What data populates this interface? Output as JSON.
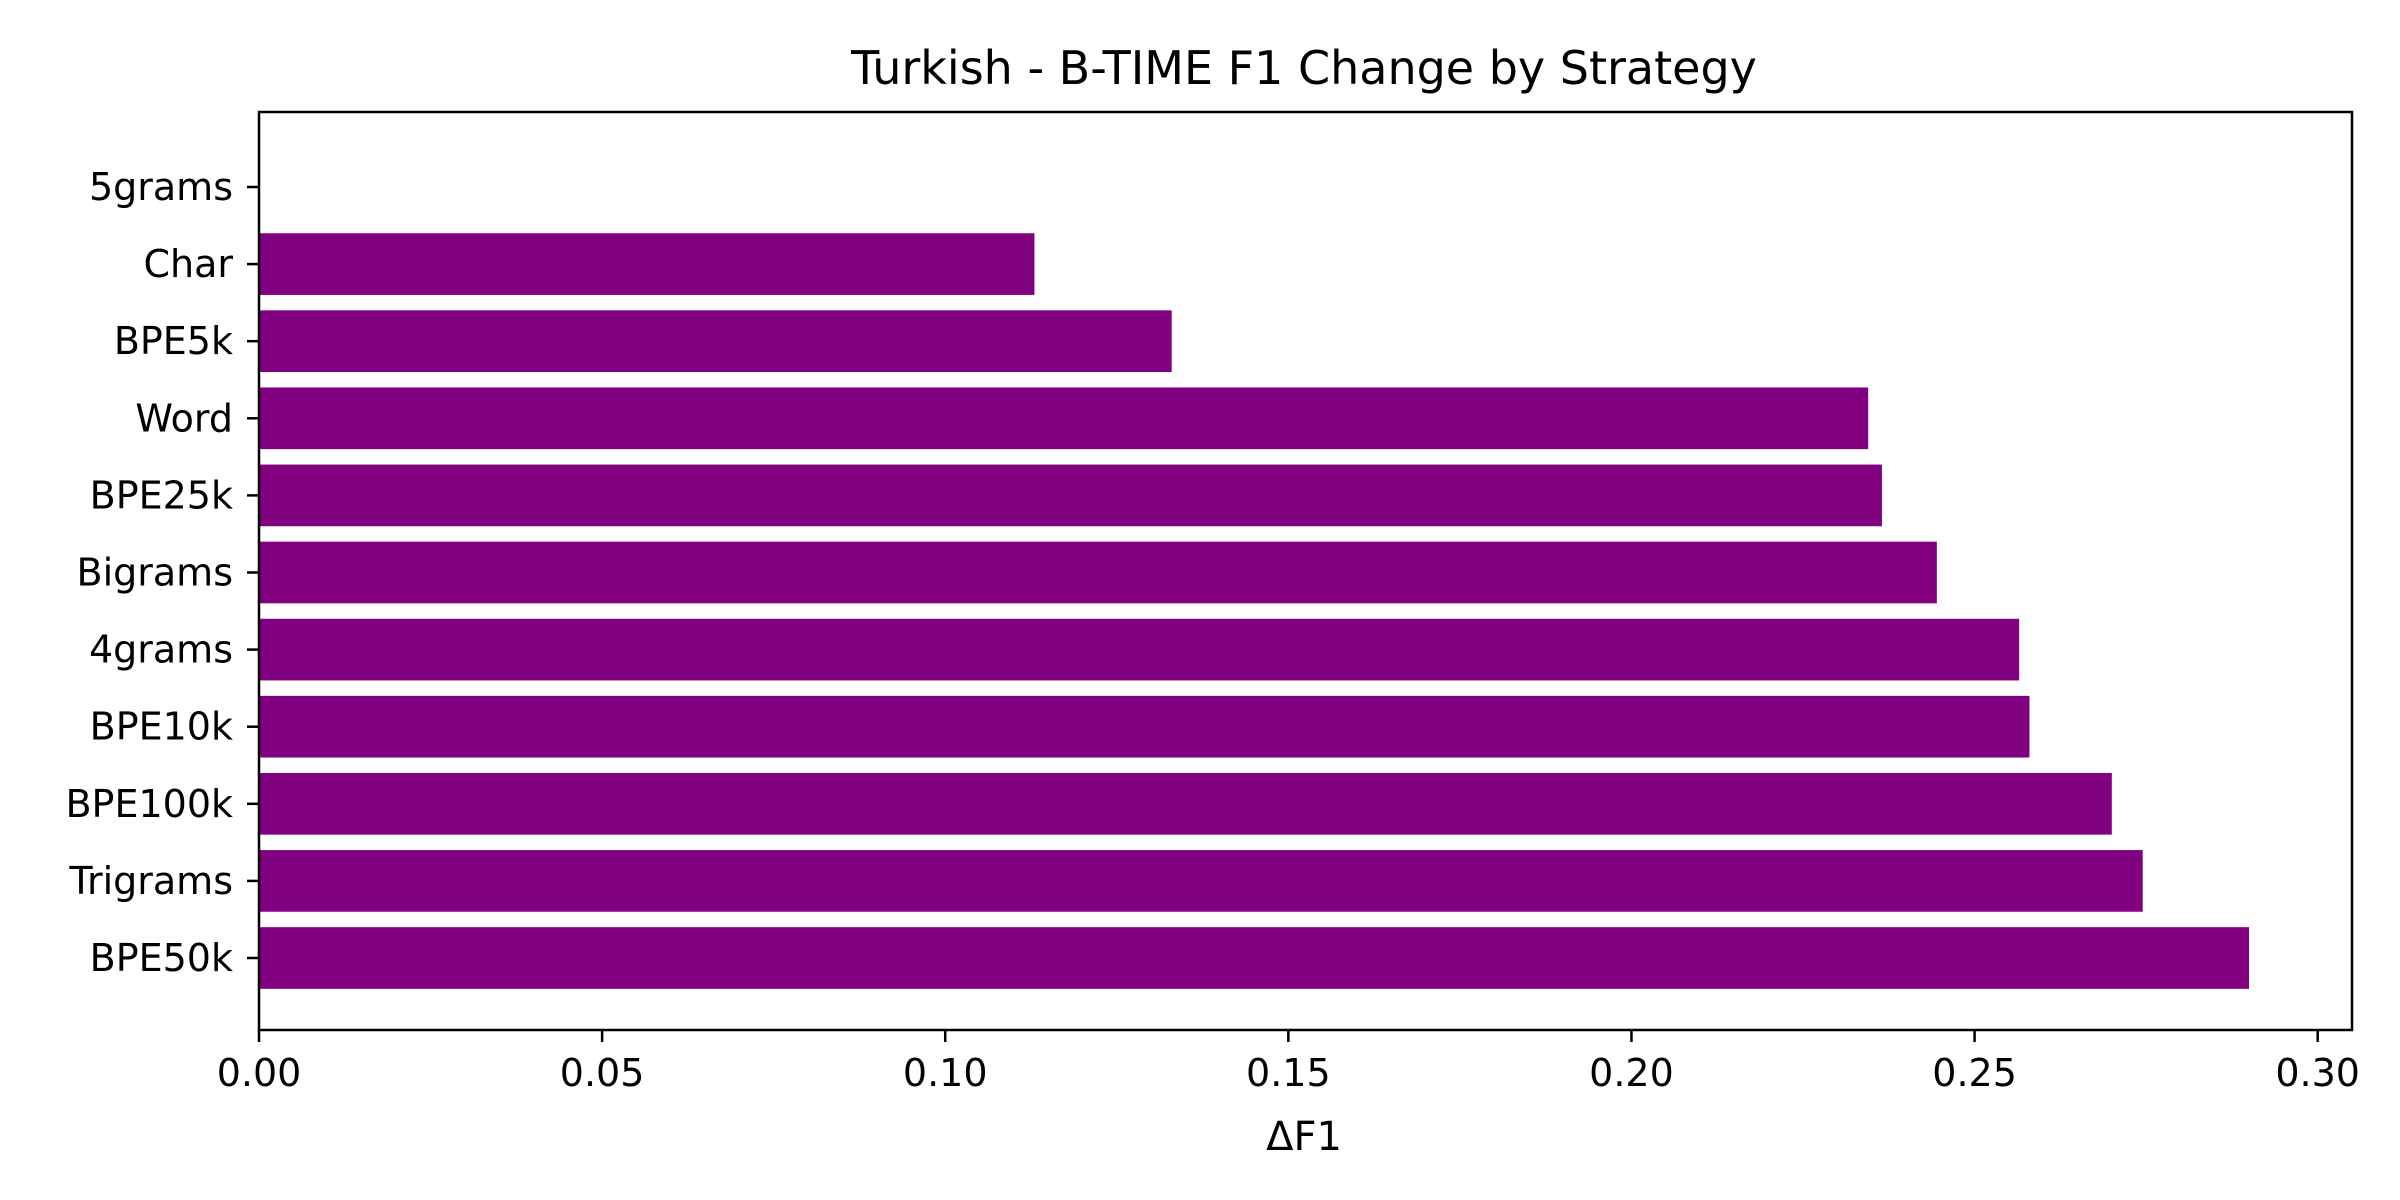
{
  "chart_data": {
    "type": "bar",
    "orientation": "horizontal",
    "title": "Turkish - B-TIME F1 Change by Strategy",
    "xlabel": "ΔF1",
    "ylabel": "",
    "categories": [
      "BPE50k",
      "Trigrams",
      "BPE100k",
      "BPE10k",
      "4grams",
      "Bigrams",
      "BPE25k",
      "Word",
      "BPE5k",
      "Char",
      "5grams"
    ],
    "values": [
      0.29,
      0.2745,
      0.27,
      0.258,
      0.2565,
      0.2445,
      0.2365,
      0.2345,
      0.133,
      0.113,
      0.0
    ],
    "xlim": [
      0.0,
      0.305
    ],
    "xticks": [
      0.0,
      0.05,
      0.1,
      0.15,
      0.2,
      0.25,
      0.3
    ],
    "xtick_labels": [
      "0.00",
      "0.05",
      "0.10",
      "0.15",
      "0.20",
      "0.25",
      "0.30"
    ],
    "grid": false,
    "legend": "none",
    "bar_color": "#800080"
  }
}
